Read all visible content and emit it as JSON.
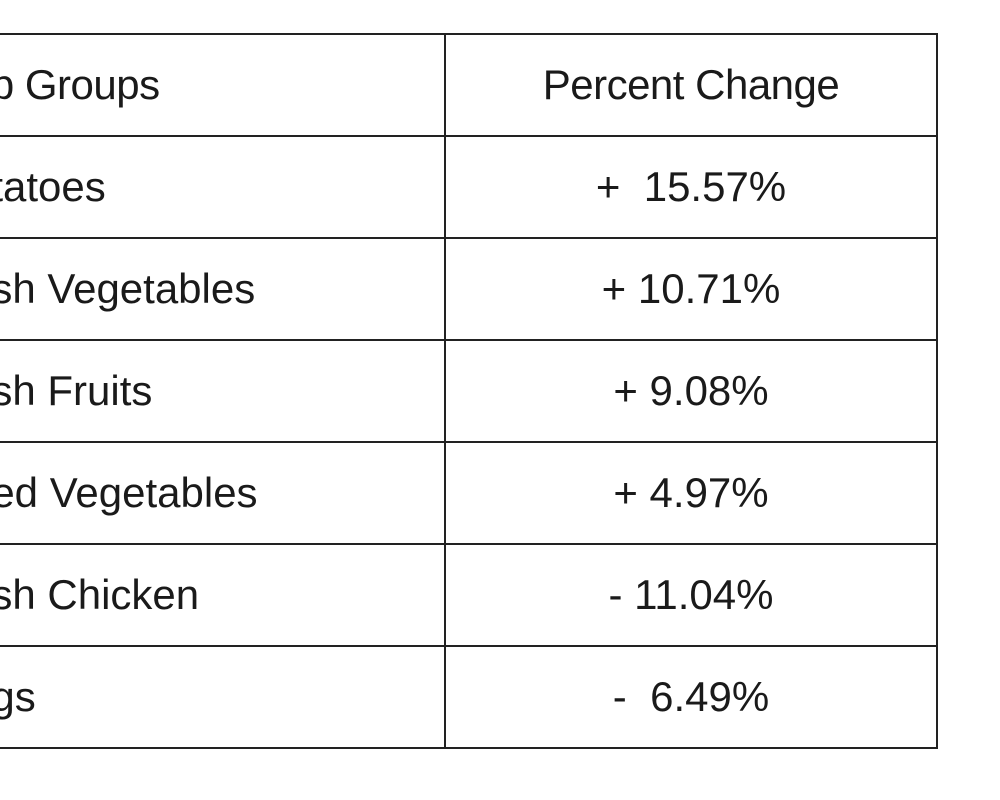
{
  "table": {
    "headers": [
      "ub Groups",
      "Percent Change"
    ],
    "rows": [
      {
        "group": "otatoes",
        "change": "+  15.57%"
      },
      {
        "group": "esh Vegetables",
        "change": "+ 10.71%"
      },
      {
        "group": "esh Fruits",
        "change": "+ 9.08%"
      },
      {
        "group": "ried Vegetables",
        "change": "+ 4.97%"
      },
      {
        "group": "esh Chicken",
        "change": "- 11.04%"
      },
      {
        "group": "ggs",
        "change": "-  6.49%"
      }
    ]
  }
}
